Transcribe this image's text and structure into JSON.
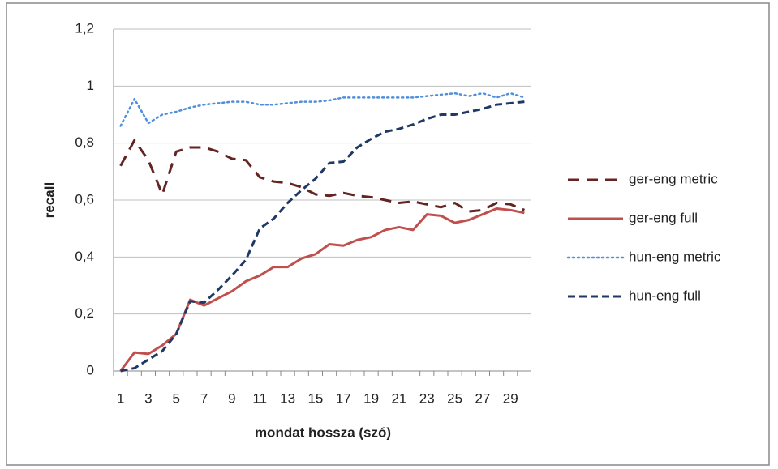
{
  "chart_data": {
    "type": "line",
    "x_label": "mondat hossza (szó)",
    "y_label": "recall",
    "categories": [
      "1",
      null,
      "3",
      null,
      "5",
      null,
      "7",
      null,
      "9",
      null,
      "11",
      null,
      "13",
      null,
      "15",
      null,
      "17",
      null,
      "19",
      null,
      "21",
      null,
      "23",
      null,
      "25",
      null,
      "27",
      null,
      "29",
      null
    ],
    "ylim": [
      0,
      1.2
    ],
    "yticks": [
      0,
      {
        "value": 0.2,
        "label": "0,2"
      },
      {
        "value": 0.4,
        "label": "0,4"
      },
      {
        "value": 0.6,
        "label": "0,6"
      },
      {
        "value": 0.8,
        "label": "0,8"
      },
      1,
      {
        "value": 1.2,
        "label": "1,2"
      }
    ],
    "grid": true,
    "legend": "right",
    "series": [
      {
        "name": "ger-eng metric",
        "color": "#632523",
        "line_style": "long-dash",
        "values": [
          0.72,
          0.81,
          0.74,
          0.62,
          0.77,
          0.785,
          0.785,
          0.77,
          0.745,
          0.74,
          0.68,
          0.665,
          0.66,
          0.645,
          0.62,
          0.615,
          0.625,
          0.615,
          0.61,
          0.6,
          0.59,
          0.595,
          0.585,
          0.575,
          0.59,
          0.56,
          0.565,
          0.59,
          0.585,
          0.565
        ]
      },
      {
        "name": "ger-eng full",
        "color": "#c0504d",
        "line_style": "solid",
        "values": [
          0,
          0.065,
          0.06,
          0.09,
          0.13,
          0.25,
          0.23,
          0.255,
          0.28,
          0.315,
          0.335,
          0.365,
          0.365,
          0.395,
          0.41,
          0.445,
          0.44,
          0.46,
          0.47,
          0.495,
          0.505,
          0.495,
          0.55,
          0.545,
          0.52,
          0.53,
          0.55,
          0.57,
          0.565,
          0.555
        ]
      },
      {
        "name": "hun-eng metric",
        "color": "#4f8fdb",
        "line_style": "dotted",
        "values": [
          0.86,
          0.955,
          0.87,
          0.9,
          0.91,
          0.925,
          0.935,
          0.94,
          0.945,
          0.945,
          0.935,
          0.935,
          0.94,
          0.945,
          0.945,
          0.95,
          0.96,
          0.96,
          0.96,
          0.96,
          0.96,
          0.96,
          0.965,
          0.97,
          0.975,
          0.965,
          0.975,
          0.96,
          0.975,
          0.96
        ]
      },
      {
        "name": "hun-eng full",
        "color": "#1f3864",
        "line_style": "dash",
        "values": [
          0,
          0.01,
          0.04,
          0.07,
          0.13,
          0.245,
          0.24,
          0.285,
          0.335,
          0.39,
          0.5,
          0.535,
          0.59,
          0.635,
          0.675,
          0.73,
          0.735,
          0.785,
          0.815,
          0.84,
          0.85,
          0.865,
          0.885,
          0.9,
          0.9,
          0.91,
          0.92,
          0.935,
          0.94,
          0.945
        ]
      }
    ]
  }
}
